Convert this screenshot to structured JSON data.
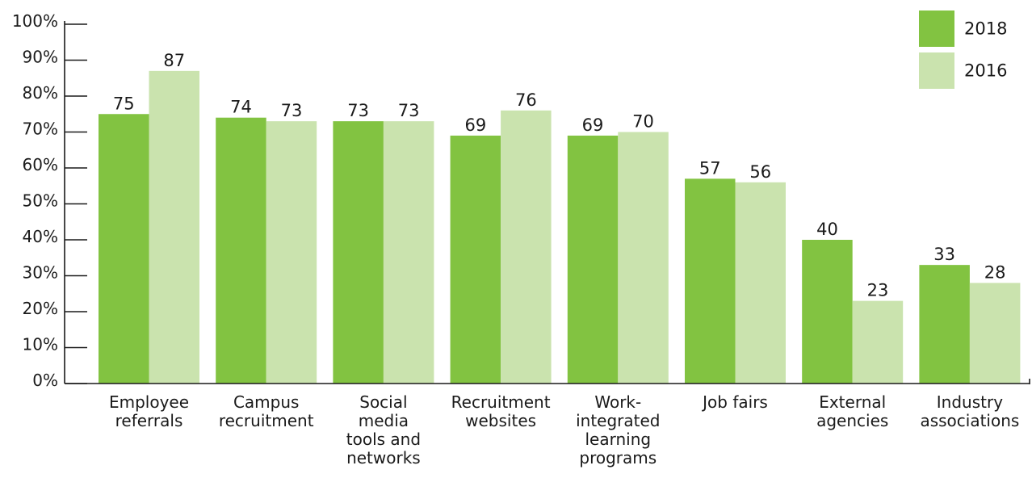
{
  "chart_data": {
    "type": "bar",
    "title": "",
    "xlabel": "",
    "ylabel": "",
    "ylim": [
      0,
      100
    ],
    "y_ticks": [
      "0%",
      "10%",
      "20%",
      "30%",
      "40%",
      "50%",
      "60%",
      "70%",
      "80%",
      "90%",
      "100%"
    ],
    "grid": false,
    "legend_position": "top-right",
    "categories": [
      [
        "Employee",
        "referrals"
      ],
      [
        "Campus",
        "recruitment"
      ],
      [
        "Social",
        "media",
        "tools and",
        "networks"
      ],
      [
        "Recruitment",
        "websites"
      ],
      [
        "Work-",
        "integrated",
        "learning",
        "programs"
      ],
      [
        "Job fairs"
      ],
      [
        "External",
        "agencies"
      ],
      [
        "Industry",
        "associations"
      ]
    ],
    "series": [
      {
        "name": "2018",
        "color": "#82c341",
        "values": [
          75,
          74,
          73,
          69,
          69,
          57,
          40,
          33
        ]
      },
      {
        "name": "2016",
        "color": "#cae3ae",
        "values": [
          87,
          73,
          73,
          76,
          70,
          56,
          23,
          28
        ]
      }
    ]
  }
}
